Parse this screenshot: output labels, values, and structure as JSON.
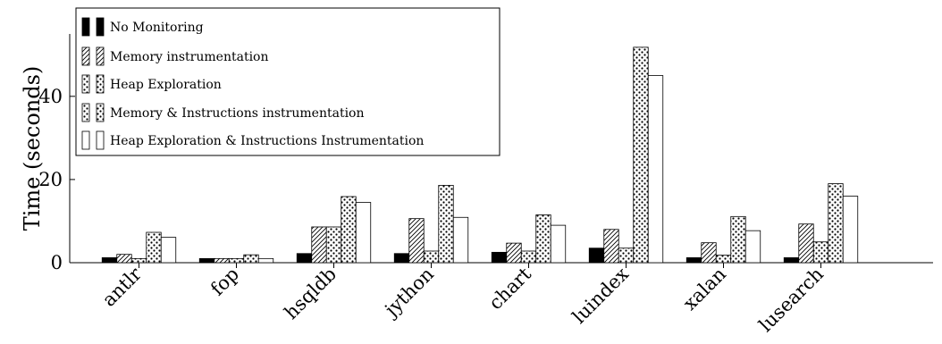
{
  "chart_data": {
    "type": "bar",
    "title": "",
    "xlabel": "",
    "ylabel": "Time (seconds)",
    "ylim": [
      0,
      55
    ],
    "yticks": [
      0,
      20,
      40
    ],
    "grid": false,
    "legend_position": "top-left",
    "categories": [
      "antlr",
      "fop",
      "hsqldb",
      "jython",
      "chart",
      "luindex",
      "xalan",
      "lusearch"
    ],
    "series": [
      {
        "name": "No Monitoring",
        "pattern": "solid",
        "values": [
          1.2,
          1.0,
          2.2,
          2.2,
          2.5,
          3.5,
          1.2,
          1.2
        ]
      },
      {
        "name": "Memory instrumentation",
        "pattern": "diagonal",
        "values": [
          2.0,
          1.0,
          8.6,
          10.6,
          4.7,
          8.0,
          4.8,
          9.3
        ]
      },
      {
        "name": "Heap Exploration",
        "pattern": "dots",
        "values": [
          1.0,
          1.0,
          8.6,
          2.8,
          2.8,
          3.5,
          1.8,
          5.0
        ]
      },
      {
        "name": "Memory & Instructions instrumentation",
        "pattern": "dots",
        "values": [
          7.3,
          1.9,
          15.9,
          18.6,
          11.5,
          51.8,
          11.1,
          19.0
        ]
      },
      {
        "name": "Heap Exploration & Instructions Instrumentation",
        "pattern": "white",
        "values": [
          6.1,
          1.0,
          14.5,
          10.9,
          9.0,
          45.0,
          7.7,
          16.0
        ]
      }
    ]
  }
}
